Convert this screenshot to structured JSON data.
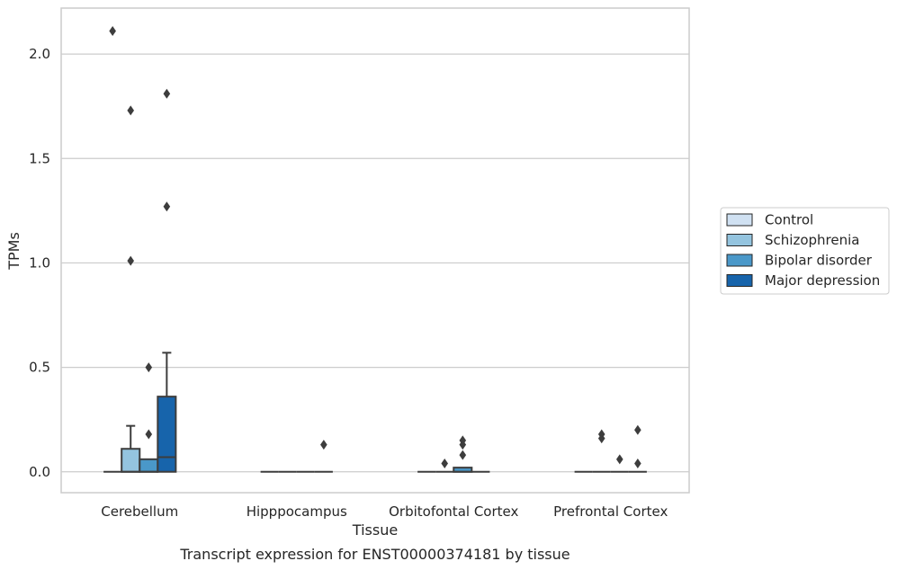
{
  "chart_data": {
    "type": "box",
    "title": "",
    "caption": "Transcript expression for ENST00000374181 by tissue",
    "xlabel": "Tissue",
    "ylabel": "TPMs",
    "ylim": [
      -0.1,
      2.22
    ],
    "yticks": [
      0.0,
      0.5,
      1.0,
      1.5,
      2.0
    ],
    "ytick_labels": [
      "0.0",
      "0.5",
      "1.0",
      "1.5",
      "2.0"
    ],
    "grid": "horizontal",
    "legend_position": "right",
    "categories": [
      "Cerebellum",
      "Hipppocampus",
      "Orbitofontal Cortex",
      "Prefrontal Cortex"
    ],
    "series": [
      {
        "name": "Control",
        "color": "#d0e1f2",
        "boxes": [
          {
            "q1": 0,
            "median": 0,
            "q3": 0,
            "whisker_low": 0,
            "whisker_high": 0,
            "outliers": [
              2.11
            ]
          },
          {
            "q1": 0,
            "median": 0,
            "q3": 0,
            "whisker_low": 0,
            "whisker_high": 0,
            "outliers": []
          },
          {
            "q1": 0,
            "median": 0,
            "q3": 0,
            "whisker_low": 0,
            "whisker_high": 0,
            "outliers": []
          },
          {
            "q1": 0,
            "median": 0,
            "q3": 0,
            "whisker_low": 0,
            "whisker_high": 0,
            "outliers": []
          }
        ]
      },
      {
        "name": "Schizophrenia",
        "color": "#94c4df",
        "boxes": [
          {
            "q1": 0,
            "median": 0,
            "q3": 0.11,
            "whisker_low": 0,
            "whisker_high": 0.22,
            "outliers": [
              1.73,
              1.01
            ]
          },
          {
            "q1": 0,
            "median": 0,
            "q3": 0,
            "whisker_low": 0,
            "whisker_high": 0,
            "outliers": []
          },
          {
            "q1": 0,
            "median": 0,
            "q3": 0,
            "whisker_low": 0,
            "whisker_high": 0,
            "outliers": [
              0.04
            ]
          },
          {
            "q1": 0,
            "median": 0,
            "q3": 0,
            "whisker_low": 0,
            "whisker_high": 0,
            "outliers": [
              0.18,
              0.16
            ]
          }
        ]
      },
      {
        "name": "Bipolar disorder",
        "color": "#4a98c9",
        "boxes": [
          {
            "q1": 0,
            "median": 0,
            "q3": 0.06,
            "whisker_low": 0,
            "whisker_high": 0.06,
            "outliers": [
              0.5,
              0.18
            ]
          },
          {
            "q1": 0,
            "median": 0,
            "q3": 0,
            "whisker_low": 0,
            "whisker_high": 0,
            "outliers": []
          },
          {
            "q1": 0,
            "median": 0,
            "q3": 0.02,
            "whisker_low": 0,
            "whisker_high": 0.02,
            "outliers": [
              0.15,
              0.13,
              0.08
            ]
          },
          {
            "q1": 0,
            "median": 0,
            "q3": 0,
            "whisker_low": 0,
            "whisker_high": 0,
            "outliers": [
              0.06
            ]
          }
        ]
      },
      {
        "name": "Major depression",
        "color": "#1764ab",
        "boxes": [
          {
            "q1": 0,
            "median": 0.07,
            "q3": 0.36,
            "whisker_low": 0,
            "whisker_high": 0.57,
            "outliers": [
              1.81,
              1.27
            ]
          },
          {
            "q1": 0,
            "median": 0,
            "q3": 0,
            "whisker_low": 0,
            "whisker_high": 0,
            "outliers": [
              0.13
            ]
          },
          {
            "q1": 0,
            "median": 0,
            "q3": 0,
            "whisker_low": 0,
            "whisker_high": 0,
            "outliers": []
          },
          {
            "q1": 0,
            "median": 0,
            "q3": 0,
            "whisker_low": 0,
            "whisker_high": 0,
            "outliers": [
              0.04,
              0.2
            ]
          }
        ]
      }
    ],
    "colors": {
      "grid": "#cccccc",
      "frame": "#cccccc",
      "box_edge": "#3d3d3d",
      "outlier": "#3d3d3d"
    }
  }
}
